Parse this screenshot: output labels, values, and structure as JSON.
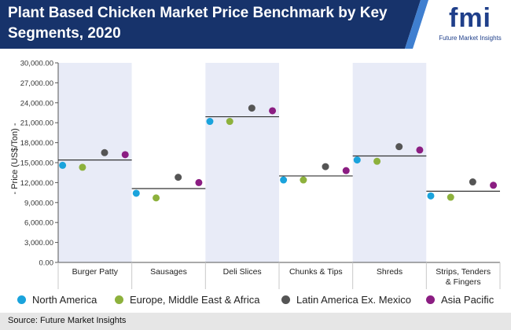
{
  "header": {
    "title": "Plant Based Chicken Market Price Benchmark by Key Segments, 2020",
    "logo_text": "fmi",
    "logo_subtitle": "Future Market Insights"
  },
  "colors": {
    "header_bg": "#17336b",
    "header_accent": "#3f7fd0",
    "band_shaded": "#e8ebf7",
    "axis": "#555555",
    "benchmark_line": "#333333"
  },
  "chart_data": {
    "type": "scatter",
    "title": "Plant Based Chicken Market Price Benchmark by Key Segments, 2020",
    "ylabel": "- Price (US$/Ton) -",
    "xlabel": "",
    "ylim": [
      0,
      30000
    ],
    "yticks": [
      "0.00",
      "3,000.00",
      "6,000.00",
      "9,000.00",
      "12,000.00",
      "15,000.00",
      "18,000.00",
      "21,000.00",
      "24,000.00",
      "27,000.00",
      "30,000.00"
    ],
    "ytick_values": [
      0,
      3000,
      6000,
      9000,
      12000,
      15000,
      18000,
      21000,
      24000,
      27000,
      30000
    ],
    "categories": [
      "Burger Patty",
      "Sausages",
      "Deli Slices",
      "Chunks & Tips",
      "Shreds",
      "Strips, Tenders & Fingers"
    ],
    "category_lines": [
      [
        "Burger Patty"
      ],
      [
        "Sausages"
      ],
      [
        "Deli Slices"
      ],
      [
        "Chunks & Tips"
      ],
      [
        "Shreds"
      ],
      [
        "Strips, Tenders",
        "& Fingers"
      ]
    ],
    "benchmark": [
      15400,
      11100,
      21900,
      13000,
      16000,
      10700
    ],
    "series": [
      {
        "name": "North America",
        "color": "#1aa3dc",
        "values": [
          14600,
          10400,
          21200,
          12400,
          15400,
          10000
        ]
      },
      {
        "name": "Europe, Middle East & Africa",
        "color": "#8db13c",
        "values": [
          14300,
          9700,
          21200,
          12400,
          15200,
          9800
        ]
      },
      {
        "name": "Latin America Ex. Mexico",
        "color": "#555555",
        "values": [
          16500,
          12800,
          23200,
          14400,
          17400,
          12100
        ]
      },
      {
        "name": "Asia Pacific",
        "color": "#8b1d82",
        "values": [
          16200,
          12000,
          22800,
          13800,
          16900,
          11600
        ]
      }
    ],
    "grid": false,
    "legend_position": "bottom"
  },
  "footer": {
    "source": "Source: Future Market Insights"
  }
}
